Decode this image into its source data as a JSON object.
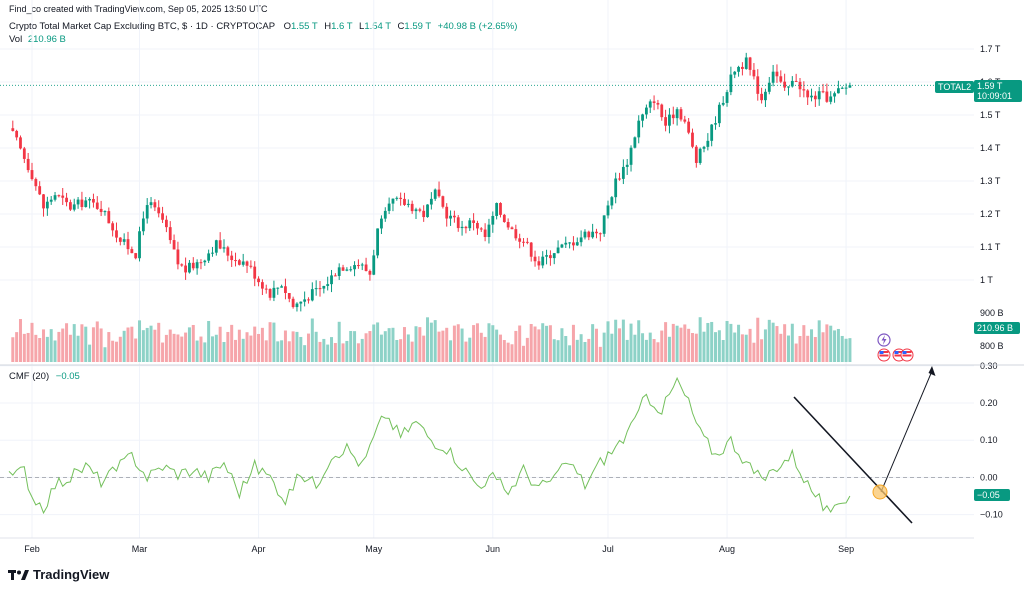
{
  "header": {
    "credit": "Find_co created with TradingView.com, Sep 05, 2025 13:50 UTC",
    "symbol_title": "Crypto Total Market Cap Excluding BTC, $ · 1D · CRYPTOCAP",
    "ohlc": [
      {
        "key": "O",
        "value": "1.55 T"
      },
      {
        "key": "H",
        "value": "1.6 T"
      },
      {
        "key": "L",
        "value": "1.54 T"
      },
      {
        "key": "C",
        "value": "1.59 T"
      }
    ],
    "change": "+40.98 B (+2.65%)",
    "vol_label": "Vol",
    "vol_value": "210.96 B"
  },
  "price_tag": {
    "symbol": "TOTAL2",
    "price": "1.59 T",
    "countdown": "10:09:01"
  },
  "volume_tag": "210.96 B",
  "cmf": {
    "label": "CMF (20)",
    "value": "−0.05",
    "tag": "−0.05"
  },
  "brand": {
    "name": "TradingView"
  },
  "colors": {
    "up": "#089981",
    "down": "#f23645",
    "vol_up": "#8dd2c7",
    "vol_down": "#f6a5aa",
    "cmf_line": "#74c05c",
    "grid": "#f0f3fa",
    "accent_orange": "#f5a623"
  },
  "icons": [
    "lightning-icon",
    "us-flag-icon",
    "us-flag-icon",
    "us-flag-icon",
    "tradingview-logo-icon"
  ],
  "chart_data": [
    {
      "type": "candlestick",
      "title": "Crypto Total Market Cap Excluding BTC, $ · 1D · CRYPTOCAP",
      "y_unit": "T",
      "ylim": [
        0.9,
        1.72
      ],
      "y_ticks": [
        "1.7 T",
        "1.6 T",
        "1.5 T",
        "1.4 T",
        "1.3 T",
        "1.2 T",
        "1.1 T",
        "1 T"
      ],
      "y_tick_values": [
        1.7,
        1.6,
        1.5,
        1.4,
        1.3,
        1.2,
        1.1,
        1.0
      ],
      "x_ticks": [
        "Feb",
        "Mar",
        "Apr",
        "May",
        "Jun",
        "Jul",
        "Aug",
        "Sep"
      ],
      "x_tick_days": [
        0,
        28,
        59,
        89,
        120,
        150,
        181,
        212
      ],
      "anchors_days": [
        -6,
        -4,
        -2,
        0,
        3,
        6,
        10,
        14,
        18,
        23,
        27,
        30,
        34,
        38,
        40,
        44,
        48,
        52,
        56,
        59,
        62,
        65,
        68,
        73,
        76,
        80,
        85,
        88,
        90,
        94,
        98,
        102,
        105,
        108,
        112,
        115,
        118,
        121,
        125,
        128,
        132,
        136,
        140,
        144,
        148,
        152,
        155,
        158,
        162,
        165,
        168,
        170,
        173,
        176,
        180,
        183,
        186,
        190,
        193,
        196,
        199,
        202,
        205,
        208,
        210,
        213
      ],
      "anchors_close": [
        1.46,
        1.42,
        1.37,
        1.32,
        1.22,
        1.26,
        1.22,
        1.24,
        1.22,
        1.12,
        1.08,
        1.24,
        1.18,
        1.05,
        1.03,
        1.06,
        1.11,
        1.07,
        1.05,
        1.0,
        0.96,
        0.99,
        0.92,
        0.96,
        0.98,
        1.04,
        1.05,
        1.02,
        1.15,
        1.24,
        1.23,
        1.2,
        1.26,
        1.2,
        1.16,
        1.18,
        1.13,
        1.22,
        1.15,
        1.12,
        1.05,
        1.09,
        1.11,
        1.14,
        1.15,
        1.3,
        1.36,
        1.48,
        1.55,
        1.47,
        1.52,
        1.48,
        1.36,
        1.43,
        1.55,
        1.64,
        1.66,
        1.55,
        1.64,
        1.57,
        1.61,
        1.55,
        1.56,
        1.55,
        1.57,
        1.59
      ],
      "last_close": 1.59
    },
    {
      "type": "bar",
      "title": "Vol",
      "last_value": "210.96 B",
      "y_ticks": [
        "900 B",
        "800 B"
      ],
      "y_tick_values": [
        900,
        800
      ]
    },
    {
      "type": "line",
      "title": "CMF (20)",
      "ylim": [
        -0.14,
        0.3
      ],
      "y_ticks": [
        "0.30",
        "0.20",
        "0.10",
        "0.00",
        "−0.10"
      ],
      "y_tick_values": [
        0.3,
        0.2,
        0.1,
        0.0,
        -0.1
      ],
      "anchors_days": [
        -6,
        -2,
        0,
        3,
        6,
        10,
        14,
        18,
        22,
        26,
        30,
        34,
        38,
        42,
        46,
        50,
        54,
        58,
        62,
        66,
        70,
        74,
        78,
        82,
        86,
        90,
        92,
        96,
        100,
        104,
        108,
        112,
        116,
        120,
        124,
        128,
        132,
        136,
        140,
        144,
        148,
        152,
        156,
        160,
        164,
        168,
        171,
        174,
        178,
        182,
        186,
        190,
        194,
        198,
        202,
        205,
        208,
        210,
        213
      ],
      "anchors_values": [
        0.0,
        0.02,
        -0.05,
        -0.08,
        -0.02,
        0.0,
        0.03,
        -0.01,
        0.02,
        0.06,
        0.0,
        0.03,
        0.01,
        0.02,
        0.0,
        0.04,
        -0.04,
        0.03,
        0.0,
        -0.06,
        0.01,
        -0.02,
        0.06,
        0.08,
        0.03,
        0.13,
        0.17,
        0.11,
        0.15,
        0.1,
        0.08,
        0.03,
        -0.02,
        0.0,
        -0.04,
        0.02,
        -0.03,
        0.0,
        0.04,
        -0.02,
        0.04,
        0.08,
        0.13,
        0.22,
        0.18,
        0.26,
        0.2,
        0.12,
        0.06,
        0.1,
        0.04,
        -0.01,
        0.03,
        0.06,
        -0.02,
        -0.06,
        -0.11,
        -0.07,
        -0.05
      ],
      "last_value": -0.05
    }
  ]
}
